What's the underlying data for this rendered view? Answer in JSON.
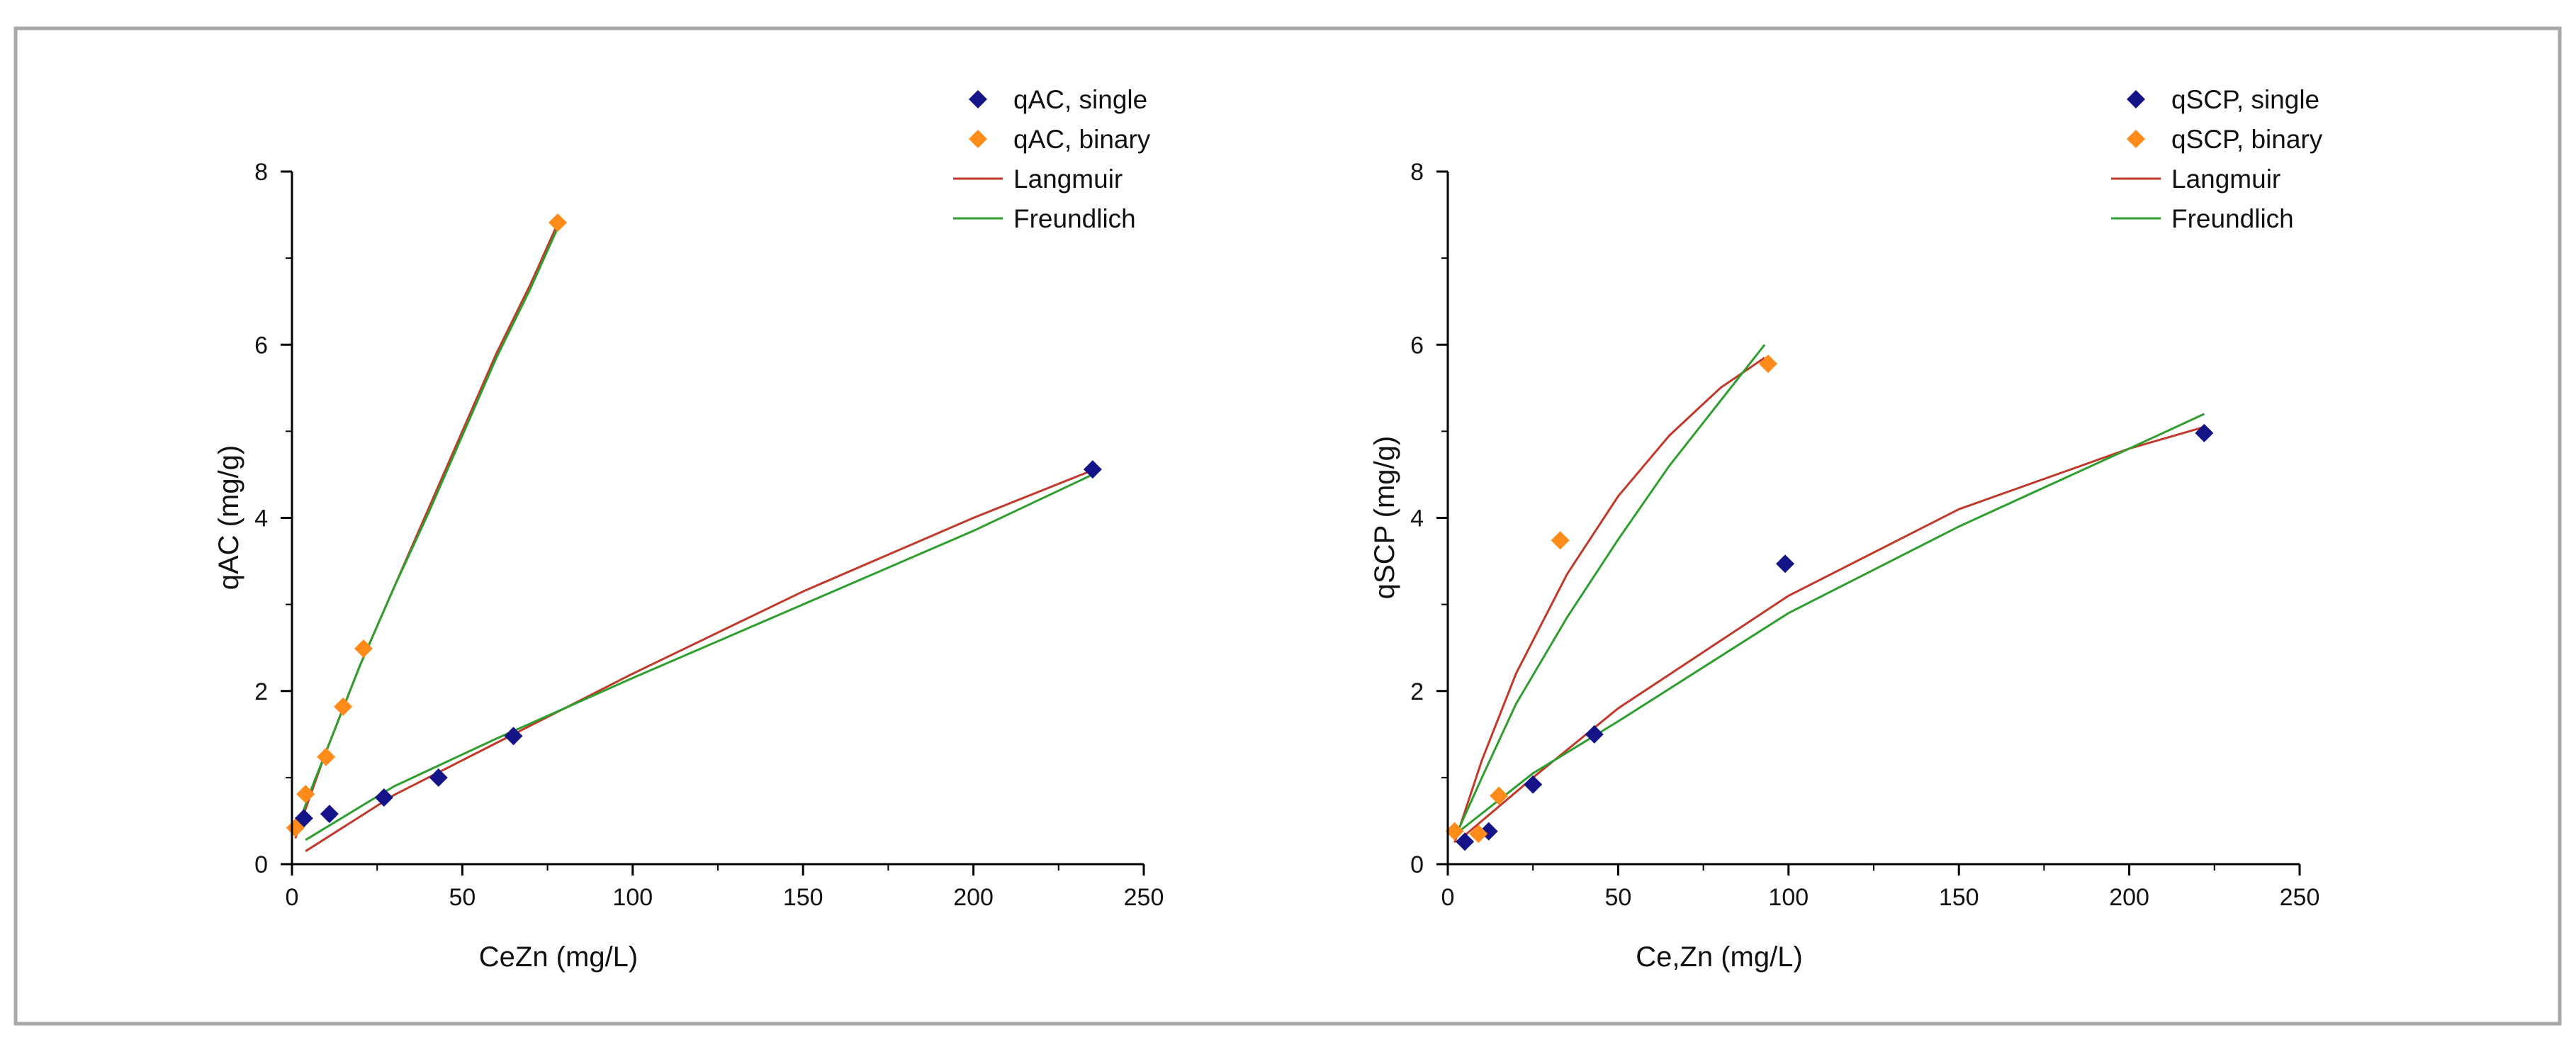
{
  "chart_data": [
    {
      "type": "scatter",
      "title": "",
      "xlabel": "CeZn (mg/L)",
      "ylabel": "qAC (mg/g)",
      "xlim": [
        0,
        250
      ],
      "ylim": [
        0,
        8
      ],
      "xticks": [
        "0",
        "50",
        "100",
        "150",
        "200",
        "250"
      ],
      "yticks": [
        "0",
        "2",
        "4",
        "6",
        "8"
      ],
      "legend_position": "top-right",
      "series": [
        {
          "name": "qAC, single",
          "kind": "marker",
          "color": "#141488",
          "x": [
            3.5,
            11,
            27,
            43,
            65,
            235
          ],
          "y": [
            0.53,
            0.58,
            0.77,
            1.0,
            1.48,
            4.56
          ]
        },
        {
          "name": "qAC, binary",
          "kind": "marker",
          "color": "#ff8c1a",
          "x": [
            1,
            4,
            10,
            15,
            21,
            78
          ],
          "y": [
            0.42,
            0.81,
            1.24,
            1.82,
            2.49,
            7.41
          ]
        },
        {
          "name": "Langmuir",
          "kind": "line",
          "color": "#c0392b",
          "curves": [
            {
              "x": [
                4,
                30,
                60,
                100,
                150,
                200,
                235
              ],
              "y": [
                0.15,
                0.8,
                1.4,
                2.2,
                3.15,
                4.0,
                4.55
              ]
            },
            {
              "x": [
                1,
                5,
                10,
                20,
                30,
                40,
                50,
                60,
                70,
                78
              ],
              "y": [
                0.3,
                0.75,
                1.3,
                2.3,
                3.2,
                4.1,
                5.0,
                5.9,
                6.7,
                7.4
              ]
            }
          ]
        },
        {
          "name": "Freundlich",
          "kind": "line",
          "color": "#2e9e2e",
          "curves": [
            {
              "x": [
                4,
                30,
                60,
                100,
                150,
                200,
                235
              ],
              "y": [
                0.28,
                0.9,
                1.45,
                2.15,
                3.0,
                3.85,
                4.5
              ]
            },
            {
              "x": [
                1,
                5,
                10,
                20,
                30,
                40,
                50,
                60,
                70,
                78
              ],
              "y": [
                0.35,
                0.8,
                1.3,
                2.3,
                3.2,
                4.05,
                4.95,
                5.85,
                6.65,
                7.35
              ]
            }
          ]
        }
      ]
    },
    {
      "type": "scatter",
      "title": "",
      "xlabel": "Ce,Zn (mg/L)",
      "ylabel": "qSCP (mg/g)",
      "xlim": [
        0,
        250
      ],
      "ylim": [
        0,
        8
      ],
      "xticks": [
        "0",
        "50",
        "100",
        "150",
        "200",
        "250"
      ],
      "yticks": [
        "0",
        "2",
        "4",
        "6",
        "8"
      ],
      "legend_position": "top-right",
      "series": [
        {
          "name": "qSCP, single",
          "kind": "marker",
          "color": "#141488",
          "x": [
            5,
            12,
            25,
            43,
            99,
            222
          ],
          "y": [
            0.26,
            0.38,
            0.92,
            1.5,
            3.47,
            4.98
          ]
        },
        {
          "name": "qSCP, binary",
          "kind": "marker",
          "color": "#ff8c1a",
          "x": [
            2,
            9,
            15,
            33,
            94
          ],
          "y": [
            0.38,
            0.35,
            0.79,
            3.74,
            5.78
          ]
        },
        {
          "name": "Langmuir",
          "kind": "line",
          "color": "#c0392b",
          "curves": [
            {
              "x": [
                4,
                25,
                50,
                100,
                150,
                200,
                222
              ],
              "y": [
                0.3,
                1.0,
                1.8,
                3.1,
                4.1,
                4.8,
                5.05
              ]
            },
            {
              "x": [
                2,
                10,
                20,
                35,
                50,
                65,
                80,
                93
              ],
              "y": [
                0.25,
                1.2,
                2.2,
                3.35,
                4.25,
                4.95,
                5.5,
                5.85
              ]
            }
          ]
        },
        {
          "name": "Freundlich",
          "kind": "line",
          "color": "#2e9e2e",
          "curves": [
            {
              "x": [
                4,
                25,
                50,
                100,
                150,
                200,
                222
              ],
              "y": [
                0.4,
                1.05,
                1.65,
                2.9,
                3.9,
                4.8,
                5.2
              ]
            },
            {
              "x": [
                2,
                10,
                20,
                35,
                50,
                65,
                80,
                93
              ],
              "y": [
                0.3,
                1.0,
                1.85,
                2.85,
                3.75,
                4.6,
                5.35,
                6.0
              ]
            }
          ]
        }
      ]
    }
  ]
}
